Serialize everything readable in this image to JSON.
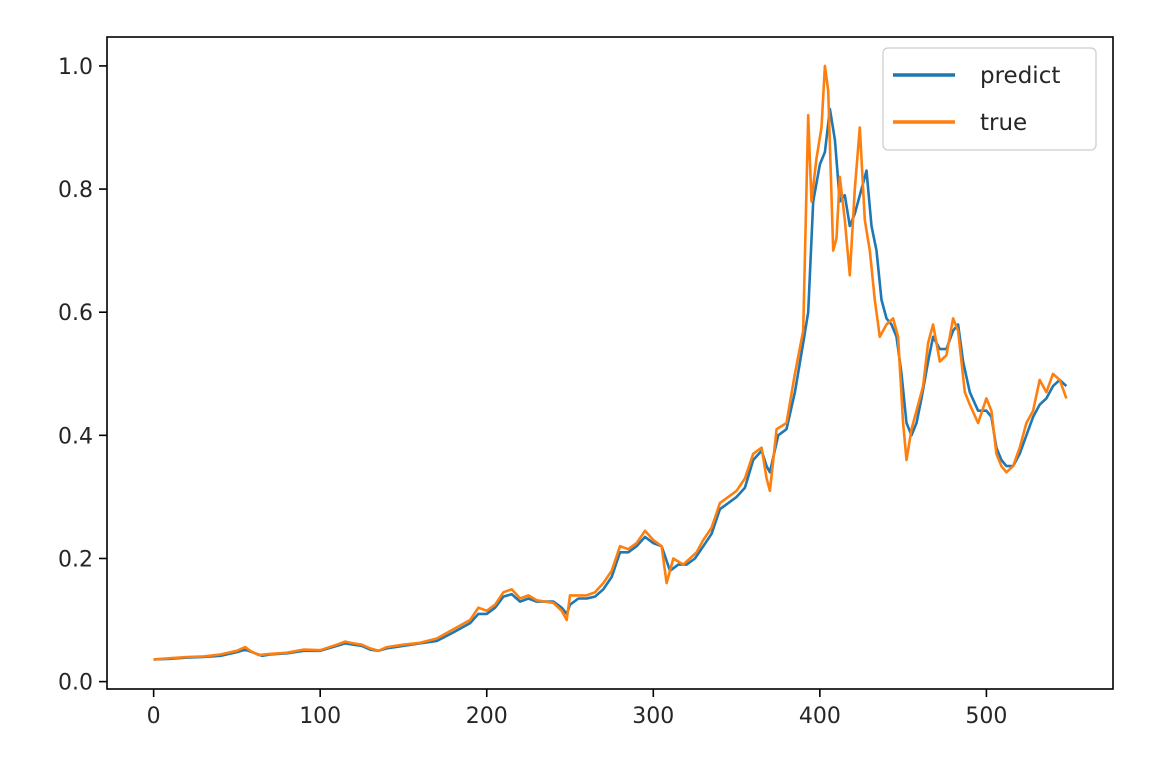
{
  "chart_data": {
    "type": "line",
    "title": "",
    "xlabel": "",
    "ylabel": "",
    "xlim": [
      -28,
      576
    ],
    "ylim": [
      -0.012,
      1.047
    ],
    "xticks": [
      0,
      100,
      200,
      300,
      400,
      500
    ],
    "xtick_labels": [
      "0",
      "100",
      "200",
      "300",
      "400",
      "500"
    ],
    "yticks": [
      0.0,
      0.2,
      0.4,
      0.6,
      0.8,
      1.0
    ],
    "ytick_labels": [
      "0.0",
      "0.2",
      "0.4",
      "0.6",
      "0.8",
      "1.0"
    ],
    "grid": false,
    "legend_position": "top-right",
    "series": [
      {
        "name": "predict",
        "color": "#1f77b4",
        "points": [
          [
            0,
            0.036
          ],
          [
            10,
            0.037
          ],
          [
            20,
            0.039
          ],
          [
            30,
            0.04
          ],
          [
            40,
            0.042
          ],
          [
            50,
            0.048
          ],
          [
            55,
            0.052
          ],
          [
            60,
            0.047
          ],
          [
            65,
            0.042
          ],
          [
            70,
            0.044
          ],
          [
            80,
            0.046
          ],
          [
            90,
            0.05
          ],
          [
            100,
            0.05
          ],
          [
            110,
            0.058
          ],
          [
            115,
            0.062
          ],
          [
            120,
            0.06
          ],
          [
            125,
            0.058
          ],
          [
            130,
            0.052
          ],
          [
            135,
            0.05
          ],
          [
            140,
            0.054
          ],
          [
            150,
            0.058
          ],
          [
            160,
            0.062
          ],
          [
            170,
            0.066
          ],
          [
            180,
            0.08
          ],
          [
            190,
            0.095
          ],
          [
            195,
            0.11
          ],
          [
            200,
            0.11
          ],
          [
            205,
            0.12
          ],
          [
            210,
            0.138
          ],
          [
            215,
            0.142
          ],
          [
            220,
            0.13
          ],
          [
            225,
            0.135
          ],
          [
            230,
            0.13
          ],
          [
            240,
            0.13
          ],
          [
            245,
            0.12
          ],
          [
            248,
            0.11
          ],
          [
            250,
            0.125
          ],
          [
            255,
            0.135
          ],
          [
            260,
            0.135
          ],
          [
            265,
            0.138
          ],
          [
            270,
            0.15
          ],
          [
            275,
            0.17
          ],
          [
            280,
            0.21
          ],
          [
            285,
            0.21
          ],
          [
            290,
            0.22
          ],
          [
            295,
            0.235
          ],
          [
            300,
            0.225
          ],
          [
            305,
            0.22
          ],
          [
            310,
            0.18
          ],
          [
            315,
            0.19
          ],
          [
            320,
            0.19
          ],
          [
            325,
            0.2
          ],
          [
            330,
            0.22
          ],
          [
            335,
            0.24
          ],
          [
            340,
            0.28
          ],
          [
            345,
            0.29
          ],
          [
            350,
            0.3
          ],
          [
            355,
            0.315
          ],
          [
            360,
            0.36
          ],
          [
            365,
            0.375
          ],
          [
            368,
            0.35
          ],
          [
            370,
            0.34
          ],
          [
            375,
            0.4
          ],
          [
            380,
            0.41
          ],
          [
            385,
            0.47
          ],
          [
            390,
            0.55
          ],
          [
            393,
            0.6
          ],
          [
            396,
            0.78
          ],
          [
            400,
            0.84
          ],
          [
            403,
            0.86
          ],
          [
            406,
            0.93
          ],
          [
            409,
            0.88
          ],
          [
            412,
            0.78
          ],
          [
            415,
            0.79
          ],
          [
            418,
            0.74
          ],
          [
            421,
            0.76
          ],
          [
            425,
            0.8
          ],
          [
            428,
            0.83
          ],
          [
            431,
            0.74
          ],
          [
            434,
            0.7
          ],
          [
            437,
            0.62
          ],
          [
            440,
            0.59
          ],
          [
            443,
            0.58
          ],
          [
            446,
            0.56
          ],
          [
            449,
            0.5
          ],
          [
            452,
            0.42
          ],
          [
            455,
            0.4
          ],
          [
            458,
            0.42
          ],
          [
            461,
            0.46
          ],
          [
            465,
            0.52
          ],
          [
            468,
            0.56
          ],
          [
            472,
            0.54
          ],
          [
            476,
            0.54
          ],
          [
            480,
            0.57
          ],
          [
            483,
            0.58
          ],
          [
            486,
            0.52
          ],
          [
            490,
            0.47
          ],
          [
            495,
            0.44
          ],
          [
            500,
            0.44
          ],
          [
            503,
            0.43
          ],
          [
            506,
            0.38
          ],
          [
            509,
            0.36
          ],
          [
            512,
            0.35
          ],
          [
            516,
            0.35
          ],
          [
            520,
            0.37
          ],
          [
            524,
            0.4
          ],
          [
            528,
            0.43
          ],
          [
            532,
            0.45
          ],
          [
            536,
            0.46
          ],
          [
            540,
            0.48
          ],
          [
            544,
            0.49
          ],
          [
            548,
            0.48
          ]
        ]
      },
      {
        "name": "true",
        "color": "#ff7f0e",
        "points": [
          [
            0,
            0.036
          ],
          [
            10,
            0.038
          ],
          [
            20,
            0.04
          ],
          [
            30,
            0.041
          ],
          [
            40,
            0.044
          ],
          [
            50,
            0.05
          ],
          [
            55,
            0.056
          ],
          [
            58,
            0.05
          ],
          [
            63,
            0.043
          ],
          [
            70,
            0.045
          ],
          [
            80,
            0.047
          ],
          [
            90,
            0.052
          ],
          [
            100,
            0.051
          ],
          [
            110,
            0.06
          ],
          [
            115,
            0.065
          ],
          [
            120,
            0.062
          ],
          [
            125,
            0.06
          ],
          [
            130,
            0.054
          ],
          [
            135,
            0.05
          ],
          [
            140,
            0.056
          ],
          [
            150,
            0.06
          ],
          [
            160,
            0.063
          ],
          [
            170,
            0.07
          ],
          [
            180,
            0.085
          ],
          [
            190,
            0.1
          ],
          [
            195,
            0.12
          ],
          [
            200,
            0.115
          ],
          [
            205,
            0.125
          ],
          [
            210,
            0.145
          ],
          [
            215,
            0.15
          ],
          [
            220,
            0.135
          ],
          [
            225,
            0.14
          ],
          [
            230,
            0.132
          ],
          [
            240,
            0.128
          ],
          [
            245,
            0.115
          ],
          [
            248,
            0.1
          ],
          [
            250,
            0.14
          ],
          [
            255,
            0.14
          ],
          [
            260,
            0.14
          ],
          [
            265,
            0.145
          ],
          [
            270,
            0.16
          ],
          [
            275,
            0.18
          ],
          [
            280,
            0.22
          ],
          [
            285,
            0.215
          ],
          [
            290,
            0.225
          ],
          [
            295,
            0.245
          ],
          [
            300,
            0.23
          ],
          [
            305,
            0.22
          ],
          [
            308,
            0.16
          ],
          [
            312,
            0.2
          ],
          [
            318,
            0.19
          ],
          [
            322,
            0.2
          ],
          [
            326,
            0.21
          ],
          [
            330,
            0.23
          ],
          [
            335,
            0.25
          ],
          [
            340,
            0.29
          ],
          [
            345,
            0.3
          ],
          [
            350,
            0.31
          ],
          [
            355,
            0.33
          ],
          [
            360,
            0.37
          ],
          [
            365,
            0.38
          ],
          [
            368,
            0.33
          ],
          [
            370,
            0.31
          ],
          [
            374,
            0.41
          ],
          [
            380,
            0.42
          ],
          [
            385,
            0.5
          ],
          [
            390,
            0.57
          ],
          [
            393,
            0.92
          ],
          [
            395,
            0.78
          ],
          [
            398,
            0.85
          ],
          [
            401,
            0.9
          ],
          [
            403,
            1.0
          ],
          [
            405,
            0.96
          ],
          [
            408,
            0.7
          ],
          [
            410,
            0.72
          ],
          [
            412,
            0.82
          ],
          [
            415,
            0.75
          ],
          [
            418,
            0.66
          ],
          [
            421,
            0.8
          ],
          [
            424,
            0.9
          ],
          [
            427,
            0.75
          ],
          [
            430,
            0.7
          ],
          [
            433,
            0.62
          ],
          [
            436,
            0.56
          ],
          [
            440,
            0.58
          ],
          [
            444,
            0.59
          ],
          [
            447,
            0.56
          ],
          [
            450,
            0.42
          ],
          [
            452,
            0.36
          ],
          [
            455,
            0.41
          ],
          [
            458,
            0.44
          ],
          [
            462,
            0.48
          ],
          [
            465,
            0.55
          ],
          [
            468,
            0.58
          ],
          [
            472,
            0.52
          ],
          [
            476,
            0.53
          ],
          [
            480,
            0.59
          ],
          [
            483,
            0.57
          ],
          [
            487,
            0.47
          ],
          [
            490,
            0.45
          ],
          [
            495,
            0.42
          ],
          [
            500,
            0.46
          ],
          [
            503,
            0.44
          ],
          [
            506,
            0.37
          ],
          [
            509,
            0.35
          ],
          [
            512,
            0.34
          ],
          [
            516,
            0.35
          ],
          [
            520,
            0.38
          ],
          [
            524,
            0.42
          ],
          [
            528,
            0.44
          ],
          [
            532,
            0.49
          ],
          [
            536,
            0.47
          ],
          [
            540,
            0.5
          ],
          [
            544,
            0.49
          ],
          [
            548,
            0.46
          ]
        ]
      }
    ]
  }
}
